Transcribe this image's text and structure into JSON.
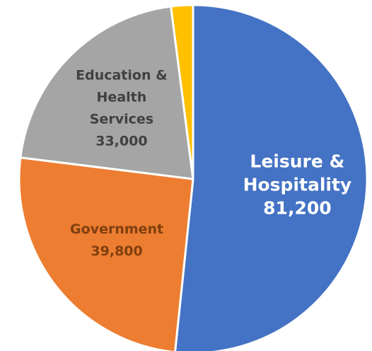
{
  "chart_data": {
    "type": "pie",
    "categories": [
      "Leisure & Hospitality",
      "Government",
      "Education & Health Services",
      ""
    ],
    "values": [
      81200,
      39800,
      33000,
      3200
    ],
    "labels": [
      {
        "lines": [
          "Leisure &",
          "Hospitality"
        ],
        "value": "81,200"
      },
      {
        "lines": [
          "Government"
        ],
        "value": "39,800"
      },
      {
        "lines": [
          "Education &",
          "Health",
          "Services"
        ],
        "value": "33,000"
      },
      null
    ],
    "colors": [
      "#4472C4",
      "#ED7D31",
      "#A5A5A5",
      "#FFC000"
    ],
    "label_colors": [
      "#FFFFFF",
      "#7F3F0F",
      "#404040",
      "#404040"
    ],
    "title": "",
    "legend": "none",
    "start_angle_deg": 0,
    "direction": "clockwise"
  }
}
